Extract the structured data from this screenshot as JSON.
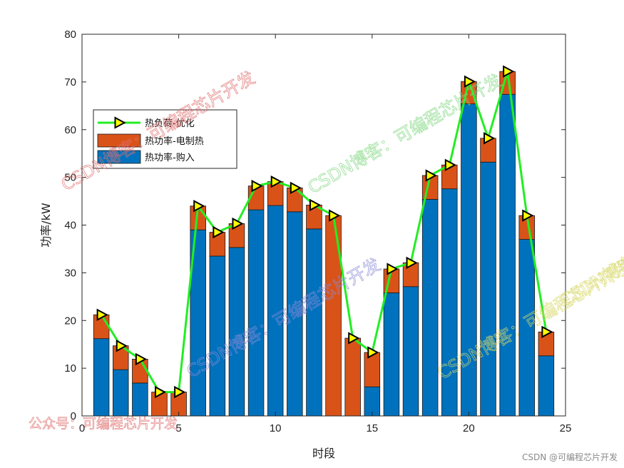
{
  "chart_data": {
    "type": "bar",
    "stacked": true,
    "title": "",
    "xlabel": "时段",
    "ylabel": "功率/kW",
    "xlim": [
      0,
      25
    ],
    "ylim": [
      0,
      80
    ],
    "xticks": [
      0,
      5,
      10,
      15,
      20,
      25
    ],
    "yticks": [
      0,
      10,
      20,
      30,
      40,
      50,
      60,
      70,
      80
    ],
    "grid": false,
    "legend_position": "upper-left",
    "x": [
      1,
      2,
      3,
      4,
      5,
      6,
      7,
      8,
      9,
      10,
      11,
      12,
      13,
      14,
      15,
      16,
      17,
      18,
      19,
      20,
      21,
      22,
      23,
      24
    ],
    "series": [
      {
        "name": "热功率-购入",
        "kind": "bar",
        "color": "#0072BD",
        "values": [
          16.2,
          9.7,
          6.9,
          0,
          0,
          39.0,
          33.5,
          35.3,
          43.2,
          44.1,
          42.8,
          39.2,
          0,
          0,
          6.1,
          25.8,
          27.1,
          45.4,
          47.6,
          65.4,
          53.2,
          67.4,
          37.0,
          12.6
        ]
      },
      {
        "name": "热功率-电制热",
        "kind": "bar",
        "color": "#D95319",
        "values": [
          5.0,
          5.0,
          5.0,
          5.0,
          5.0,
          5.0,
          5.0,
          5.0,
          5.0,
          5.0,
          5.0,
          5.0,
          42.0,
          16.3,
          7.2,
          5.0,
          5.0,
          5.0,
          5.0,
          4.7,
          5.0,
          4.8,
          5.0,
          5.0
        ]
      },
      {
        "name": "热负荷-优化",
        "kind": "line",
        "color": "#22EE22",
        "marker": "triangle-right",
        "marker_color": "#FFFF00",
        "values": [
          21.2,
          14.7,
          11.9,
          5.0,
          5.0,
          44.0,
          38.5,
          40.3,
          48.2,
          49.1,
          47.8,
          44.2,
          42.0,
          16.3,
          13.3,
          30.8,
          32.1,
          50.4,
          52.6,
          70.1,
          58.2,
          72.2,
          42.0,
          17.6
        ]
      }
    ]
  },
  "watermarks": [
    "CSDN博客：可编程芯片开发",
    "CSDN博客：可编程芯片开发",
    "CSDN博客：可编程芯片开发",
    "CSDN博客：可编程芯片开发",
    "CSDN博客：可编程芯片开发",
    "公众号：可编程芯片开发"
  ],
  "credit": "CSDN @可编程芯片开发",
  "colors": {
    "axis": "#262626",
    "bar_edge": "#1a1a1a",
    "watermark_red": "#e07070",
    "watermark_green": "#7fd67f",
    "watermark_blue": "#8a8ad8",
    "watermark_yellow": "#d8d86a"
  }
}
